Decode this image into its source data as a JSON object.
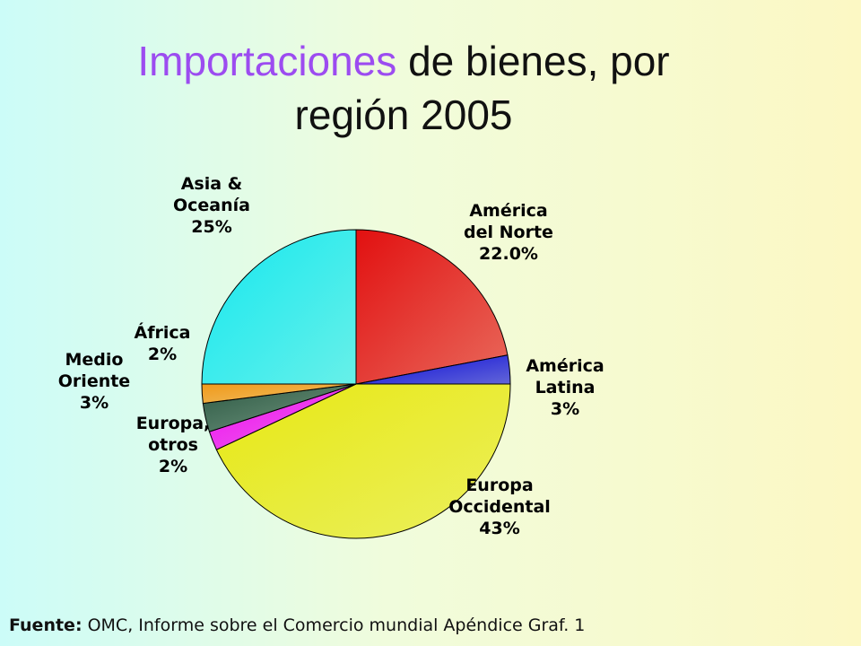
{
  "title": {
    "accent": "Importaciones",
    "line1_rest": " de bienes, por",
    "line2": "región 2005"
  },
  "source": {
    "label": "Fuente:",
    "text": " OMC, Informe sobre el Comercio mundial Apéndice Graf. 1"
  },
  "chart_data": {
    "type": "pie",
    "title": "Importaciones de bienes, por región 2005",
    "slices": [
      {
        "label": [
          "América",
          "del Norte",
          "22.0%"
        ],
        "value": 22.0,
        "color": "#e21010"
      },
      {
        "label": [
          "América",
          "Latina",
          "3%"
        ],
        "value": 3,
        "color": "#0a0ad8"
      },
      {
        "label": [
          "Europa",
          "Occidental",
          "43%"
        ],
        "value": 43,
        "color": "#e8e812"
      },
      {
        "label": [
          "Europa,",
          "otros",
          "2%"
        ],
        "value": 2,
        "color": "#f00cf0"
      },
      {
        "label": [
          "Medio",
          "Oriente",
          "3%"
        ],
        "value": 3,
        "color": "#2e5a44"
      },
      {
        "label": [
          "África",
          "2%"
        ],
        "value": 2,
        "color": "#f29a1a"
      },
      {
        "label": [
          "Asia &",
          "Oceanía",
          "25%"
        ],
        "value": 25,
        "color": "#16e8ee"
      }
    ]
  }
}
